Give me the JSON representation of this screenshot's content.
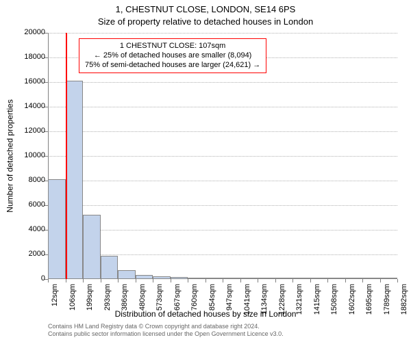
{
  "title": "1, CHESTNUT CLOSE, LONDON, SE14 6PS",
  "subtitle": "Size of property relative to detached houses in London",
  "chart": {
    "type": "histogram",
    "y_label": "Number of detached properties",
    "x_label": "Distribution of detached houses by size in London",
    "ylim": [
      0,
      20000
    ],
    "yticks": [
      0,
      2000,
      4000,
      6000,
      8000,
      10000,
      12000,
      14000,
      16000,
      18000,
      20000
    ],
    "xticks_labels": [
      "12sqm",
      "106sqm",
      "199sqm",
      "293sqm",
      "386sqm",
      "480sqm",
      "573sqm",
      "667sqm",
      "760sqm",
      "854sqm",
      "947sqm",
      "1041sqm",
      "1134sqm",
      "1228sqm",
      "1321sqm",
      "1415sqm",
      "1508sqm",
      "1602sqm",
      "1695sqm",
      "1789sqm",
      "1882sqm"
    ],
    "bars": [
      {
        "x_start": 12,
        "x_end": 106,
        "value": 8100
      },
      {
        "x_start": 106,
        "x_end": 199,
        "value": 16100
      },
      {
        "x_start": 199,
        "x_end": 293,
        "value": 5200
      },
      {
        "x_start": 293,
        "x_end": 386,
        "value": 1900
      },
      {
        "x_start": 386,
        "x_end": 480,
        "value": 750
      },
      {
        "x_start": 480,
        "x_end": 573,
        "value": 350
      },
      {
        "x_start": 573,
        "x_end": 667,
        "value": 200
      },
      {
        "x_start": 667,
        "x_end": 760,
        "value": 150
      },
      {
        "x_start": 760,
        "x_end": 854,
        "value": 100
      },
      {
        "x_start": 854,
        "x_end": 947,
        "value": 60
      },
      {
        "x_start": 947,
        "x_end": 1041,
        "value": 40
      },
      {
        "x_start": 1041,
        "x_end": 1134,
        "value": 30
      },
      {
        "x_start": 1134,
        "x_end": 1228,
        "value": 25
      },
      {
        "x_start": 1228,
        "x_end": 1321,
        "value": 20
      },
      {
        "x_start": 1321,
        "x_end": 1415,
        "value": 15
      },
      {
        "x_start": 1415,
        "x_end": 1508,
        "value": 15
      },
      {
        "x_start": 1508,
        "x_end": 1602,
        "value": 10
      },
      {
        "x_start": 1602,
        "x_end": 1695,
        "value": 10
      },
      {
        "x_start": 1695,
        "x_end": 1789,
        "value": 10
      },
      {
        "x_start": 1789,
        "x_end": 1882,
        "value": 10
      }
    ],
    "bar_fill": "#c3d3eb",
    "bar_border": "#888888",
    "x_min": 12,
    "x_max": 1882,
    "grid_color": "#b0b0b0",
    "marker": {
      "x": 107,
      "color": "#ff0000"
    },
    "annotation": {
      "border_color": "#ff0000",
      "line1": "1 CHESTNUT CLOSE: 107sqm",
      "line2": "← 25% of detached houses are smaller (8,094)",
      "line3": "75% of semi-detached houses are larger (24,621) →"
    },
    "title_fontsize": 13,
    "axis_label_fontsize": 12,
    "tick_fontsize": 11,
    "annotation_fontsize": 11,
    "background_color": "#ffffff"
  },
  "footer": {
    "line1": "Contains HM Land Registry data © Crown copyright and database right 2024.",
    "line2": "Contains public sector information licensed under the Open Government Licence v3.0.",
    "color": "#666666",
    "fontsize": 9
  }
}
